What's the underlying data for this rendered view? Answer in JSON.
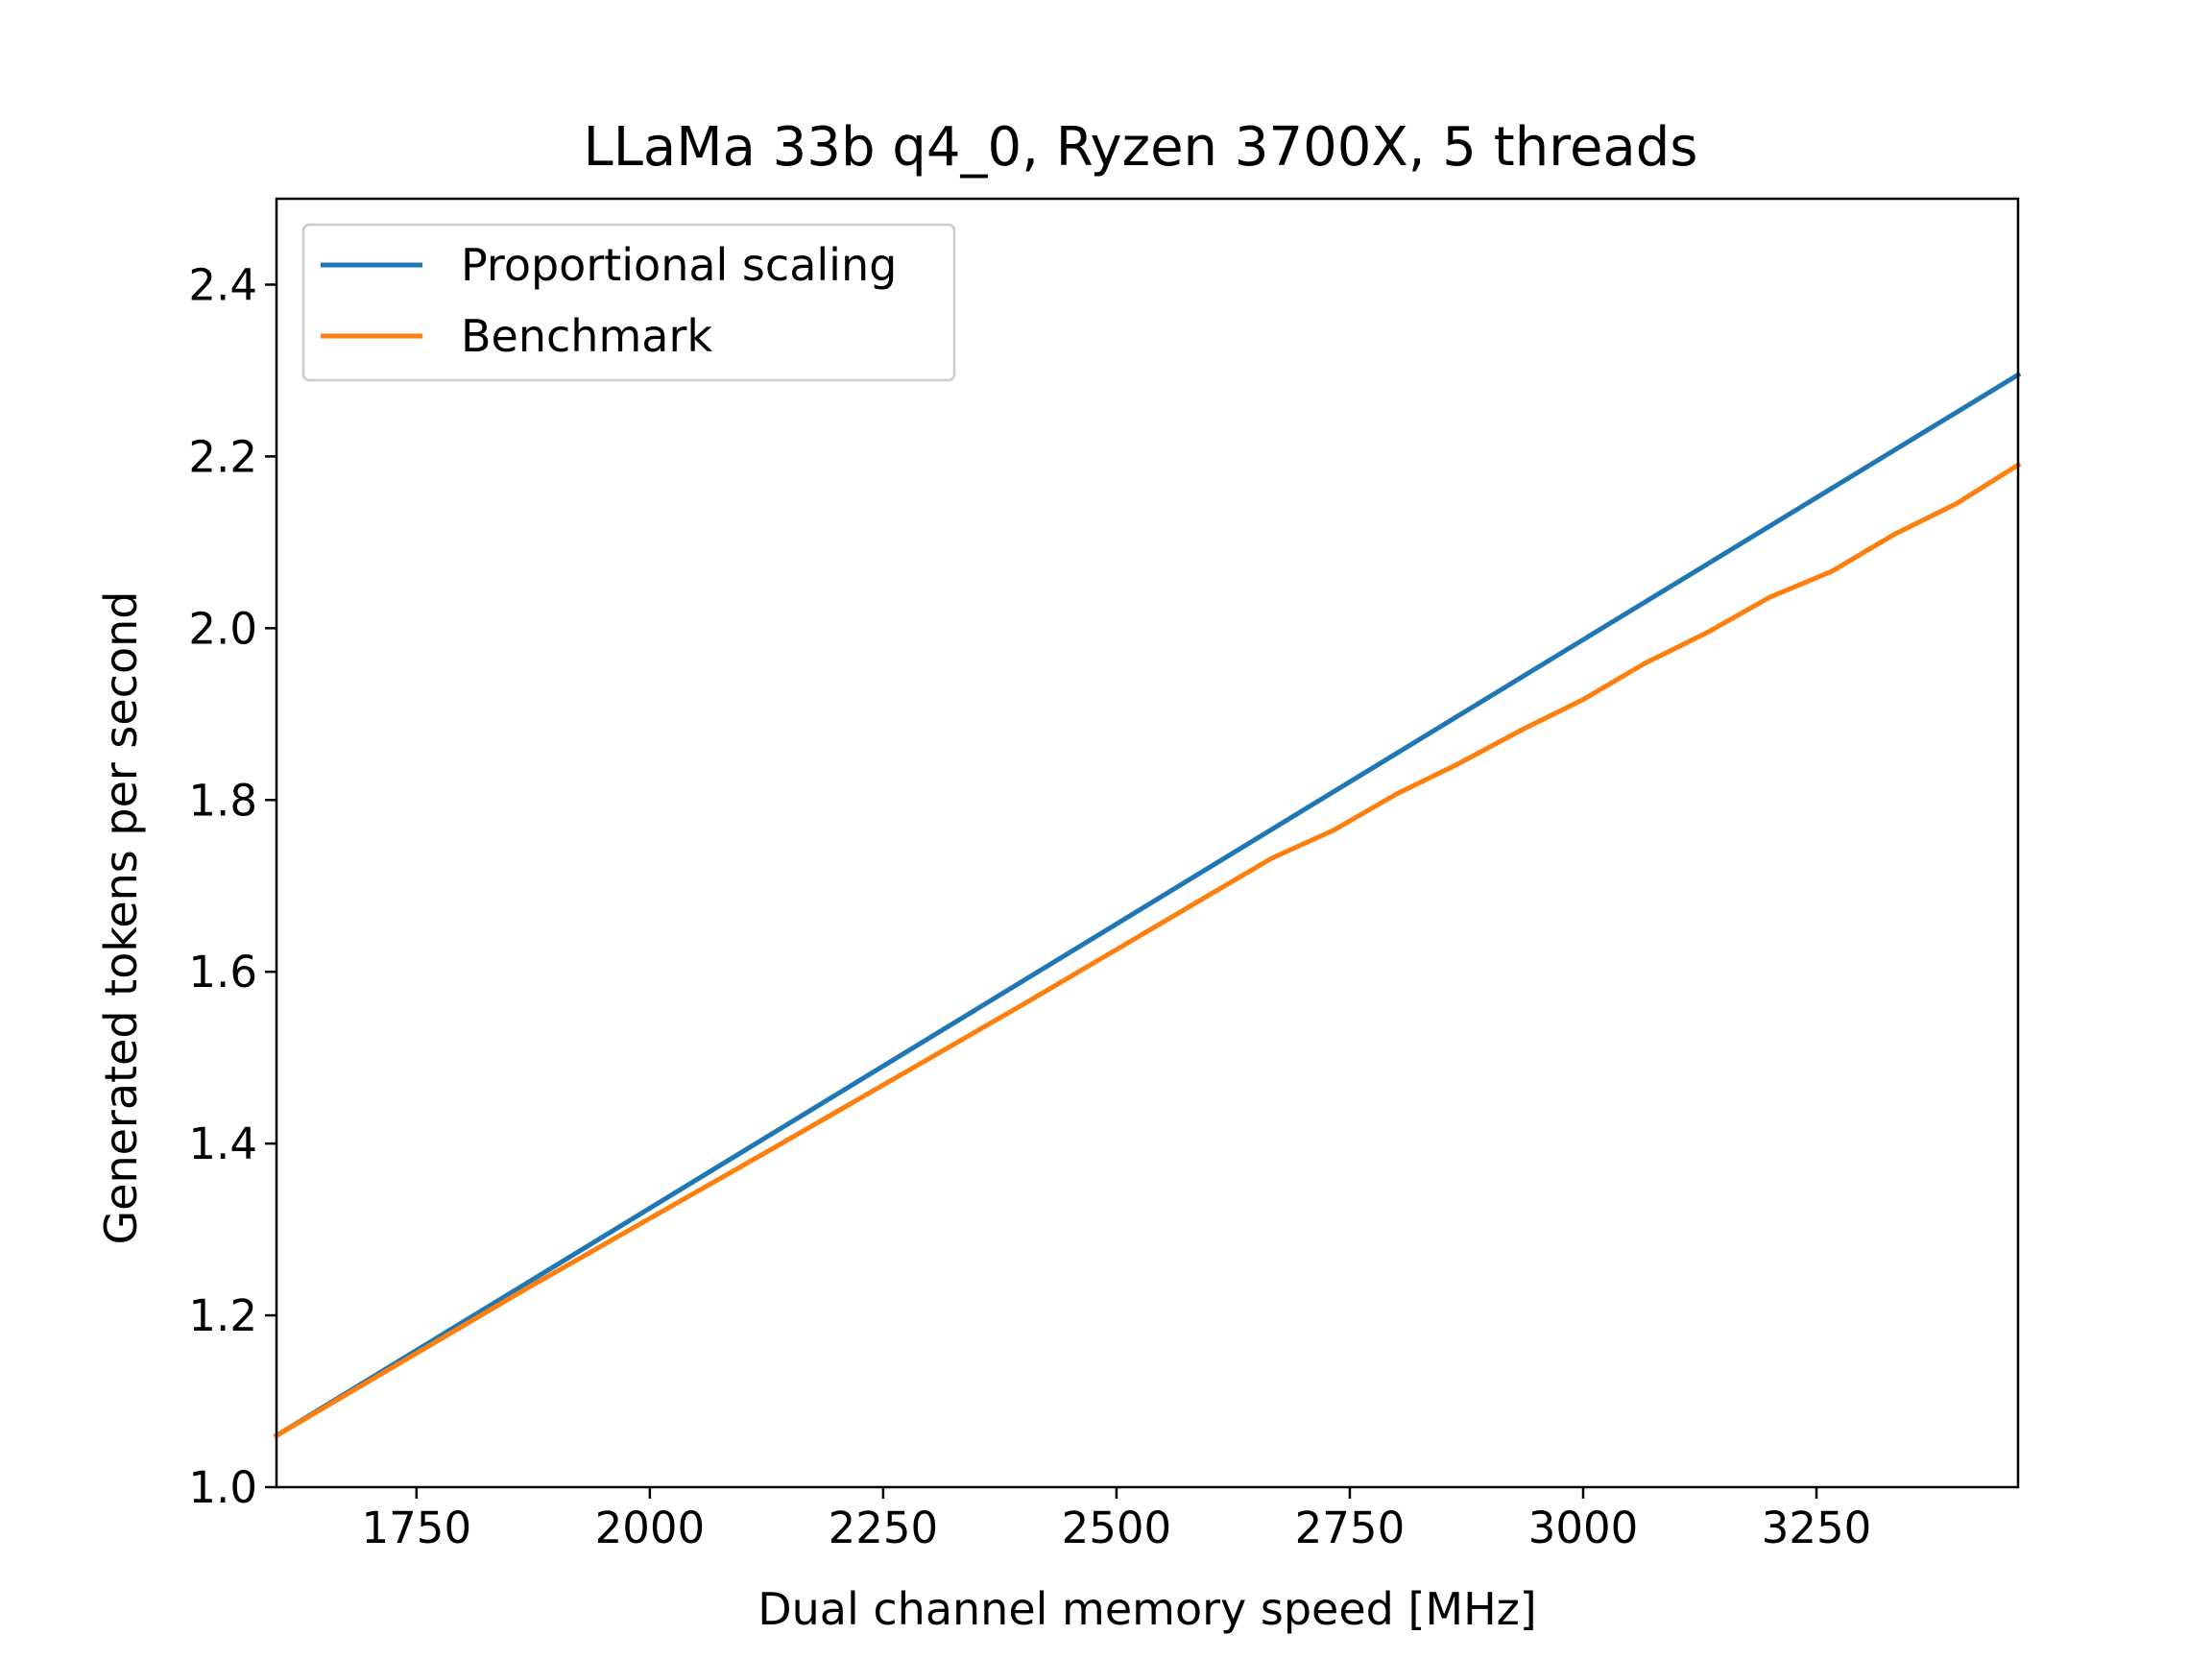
{
  "chart_data": {
    "type": "line",
    "title": "LLaMa 33b q4_0, Ryzen 3700X, 5 threads",
    "xlabel": "Dual channel memory speed [MHz]",
    "ylabel": "Generated tokens per second",
    "xlim": [
      1600,
      3466
    ],
    "ylim": [
      1.0,
      2.5
    ],
    "xticks": [
      1750,
      2000,
      2250,
      2500,
      2750,
      3000,
      3250
    ],
    "yticks": [
      1.0,
      1.2,
      1.4,
      1.6,
      1.8,
      2.0,
      2.2,
      2.4
    ],
    "grid": false,
    "legend_position": "upper-left",
    "series": [
      {
        "name": "Proportional scaling",
        "color": "#1f77b4",
        "x": [
          1600,
          3466
        ],
        "y": [
          1.06,
          2.295
        ]
      },
      {
        "name": "Benchmark",
        "color": "#ff7f0e",
        "x": [
          1600,
          1866,
          2133,
          2400,
          2666,
          2733,
          2800,
          2866,
          2933,
          3000,
          3066,
          3133,
          3200,
          3266,
          3333,
          3400,
          3466
        ],
        "y": [
          1.06,
          1.23,
          1.395,
          1.562,
          1.732,
          1.765,
          1.807,
          1.842,
          1.881,
          1.917,
          1.959,
          1.995,
          2.036,
          2.066,
          2.109,
          2.145,
          2.19
        ]
      }
    ]
  }
}
